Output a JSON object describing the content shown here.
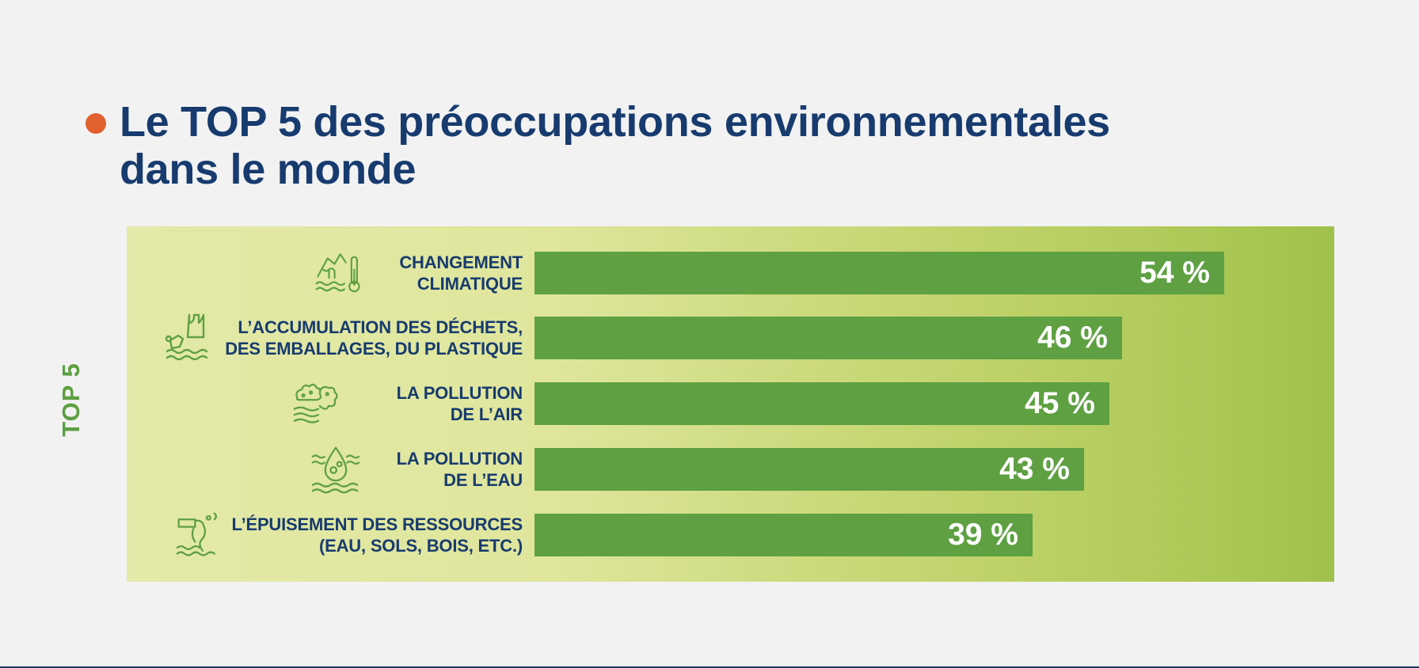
{
  "title": {
    "line1": "Le TOP 5 des préoccupations environnementales",
    "line2": "dans le monde"
  },
  "side_label": "TOP 5",
  "colors": {
    "bullet": "#e06030",
    "title": "#173b6e",
    "bar": "#5ea042",
    "side_label": "#5c9f41"
  },
  "chart_data": {
    "type": "bar",
    "orientation": "horizontal",
    "title": "Le TOP 5 des préoccupations environnementales dans le monde",
    "categories": [
      [
        "CHANGEMENT",
        "CLIMATIQUE"
      ],
      [
        "L’ACCUMULATION DES DÉCHETS,",
        "DES EMBALLAGES, DU PLASTIQUE"
      ],
      [
        "LA POLLUTION",
        "DE L’AIR"
      ],
      [
        "LA POLLUTION",
        "DE L’EAU"
      ],
      [
        "L’ÉPUISEMENT DES RESSOURCES",
        "(EAU, SOLS, BOIS, ETC.)"
      ]
    ],
    "values": [
      54,
      46,
      45,
      43,
      39
    ],
    "value_labels": [
      "54 %",
      "46 %",
      "45 %",
      "43 %",
      "39 %"
    ],
    "icons": [
      "climate-change-icon",
      "plastic-waste-icon",
      "air-pollution-icon",
      "water-pollution-icon",
      "resource-depletion-icon"
    ],
    "xlim": [
      0,
      62
    ],
    "grid": false,
    "legend": "none"
  }
}
